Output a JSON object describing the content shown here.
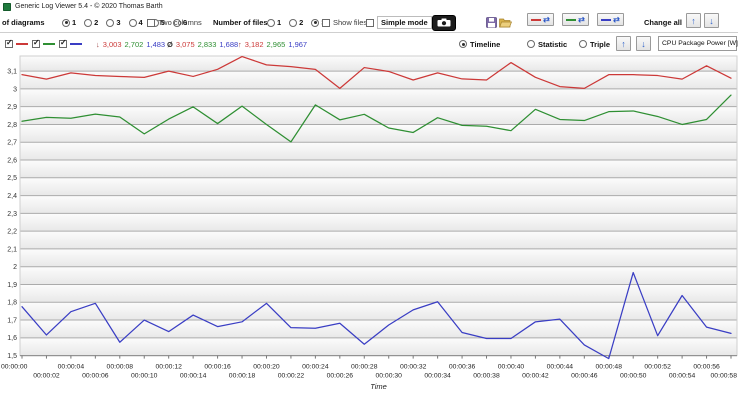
{
  "window": {
    "title": "Generic Log Viewer 5.4 - © 2020 Thomas Barth"
  },
  "toolbar": {
    "diagrams_label": "of diagrams",
    "diagram_options": [
      "1",
      "2",
      "3",
      "4",
      "5",
      "6"
    ],
    "diagrams_selected": "1",
    "two_columns_label": "Two columns",
    "files_label": "Number of files",
    "file_options": [
      "1",
      "2",
      "3"
    ],
    "files_selected": "3",
    "show_files_label": "Show files",
    "simple_mode_label": "Simple mode",
    "change_all_label": "Change all"
  },
  "glyphs": {
    "swap": "⇄",
    "up": "↑",
    "down": "↓",
    "caret": "▾"
  },
  "stats": {
    "min_symbol": "↓",
    "min": [
      "3,003",
      "2,702",
      "1,483"
    ],
    "avg_symbol": "Ø",
    "avg": [
      "3,075",
      "2,833",
      "1,688"
    ],
    "max_symbol": "↑",
    "max": [
      "3,182",
      "2,965",
      "1,967"
    ]
  },
  "view": {
    "options": [
      "Timeline",
      "Statistic",
      "Triple"
    ],
    "selected": "Timeline",
    "channel": "CPU Package Power [W]"
  },
  "colors": {
    "red": "#cc3938",
    "green": "#2f8f33",
    "blue": "#3a3ec4",
    "accent_blue": "#2e62c9"
  },
  "chart_data": {
    "type": "line",
    "title": "CPU Package Power [W]",
    "xlabel": "Time",
    "ylabel": "",
    "grid": true,
    "legend_position": "none",
    "xlim": [
      0,
      58
    ],
    "ylim": [
      1.5,
      3.185
    ],
    "x": [
      0,
      2,
      4,
      6,
      8,
      10,
      12,
      14,
      16,
      18,
      20,
      22,
      24,
      26,
      28,
      30,
      32,
      34,
      36,
      38,
      40,
      42,
      44,
      46,
      48,
      50,
      52,
      54,
      56,
      58
    ],
    "x_labels": [
      "00:00:00",
      "00:00:02",
      "00:00:04",
      "00:00:06",
      "00:00:08",
      "00:00:10",
      "00:00:12",
      "00:00:14",
      "00:00:16",
      "00:00:18",
      "00:00:20",
      "00:00:22",
      "00:00:24",
      "00:00:26",
      "00:00:28",
      "00:00:30",
      "00:00:32",
      "00:00:34",
      "00:00:36",
      "00:00:38",
      "00:00:40",
      "00:00:42",
      "00:00:44",
      "00:00:46",
      "00:00:48",
      "00:00:50",
      "00:00:52",
      "00:00:54",
      "00:00:56",
      "00:00:58"
    ],
    "ytick_values": [
      3.1,
      3.0,
      2.9,
      2.8,
      2.7,
      2.6,
      2.5,
      2.4,
      2.3,
      2.2,
      2.1,
      2.0,
      1.9,
      1.8,
      1.7,
      1.6,
      1.5
    ],
    "ytick_labels": [
      "3,1",
      "3",
      "2,9",
      "2,8",
      "2,7",
      "2,6",
      "2,5",
      "2,4",
      "2,3",
      "2,2",
      "2,1",
      "2",
      "1,9",
      "1,8",
      "1,7",
      "1,6",
      "1,5"
    ],
    "series": [
      {
        "name": "red",
        "color": "#cc3938",
        "min": 3.003,
        "avg": 3.075,
        "max": 3.182,
        "values": [
          3.08,
          3.055,
          3.09,
          3.075,
          3.07,
          3.065,
          3.1,
          3.07,
          3.11,
          3.182,
          3.135,
          3.125,
          3.11,
          3.003,
          3.12,
          3.098,
          3.05,
          3.09,
          3.056,
          3.05,
          3.148,
          3.065,
          3.013,
          3.003,
          3.08,
          3.08,
          3.075,
          3.055,
          3.13,
          3.06
        ]
      },
      {
        "name": "green",
        "color": "#2f8f33",
        "min": 2.702,
        "avg": 2.833,
        "max": 2.965,
        "values": [
          2.818,
          2.84,
          2.835,
          2.858,
          2.842,
          2.747,
          2.83,
          2.899,
          2.805,
          2.903,
          2.8,
          2.702,
          2.91,
          2.826,
          2.857,
          2.78,
          2.755,
          2.838,
          2.795,
          2.79,
          2.765,
          2.885,
          2.828,
          2.822,
          2.872,
          2.876,
          2.845,
          2.8,
          2.828,
          2.965
        ]
      },
      {
        "name": "blue",
        "color": "#3a3ec4",
        "min": 1.483,
        "avg": 1.688,
        "max": 1.967,
        "values": [
          1.775,
          1.616,
          1.747,
          1.794,
          1.575,
          1.7,
          1.635,
          1.728,
          1.663,
          1.69,
          1.794,
          1.657,
          1.654,
          1.682,
          1.564,
          1.672,
          1.757,
          1.803,
          1.63,
          1.596,
          1.596,
          1.69,
          1.705,
          1.56,
          1.483,
          1.967,
          1.612,
          1.838,
          1.66,
          1.625
        ]
      }
    ]
  }
}
